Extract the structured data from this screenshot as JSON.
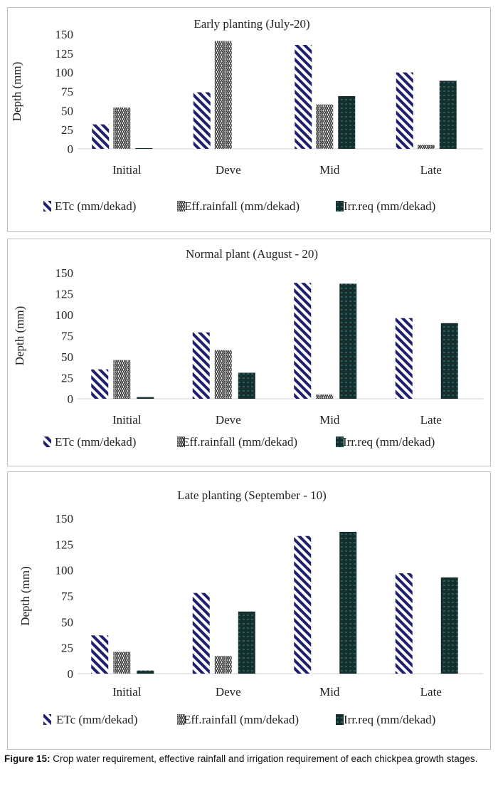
{
  "chart_data": [
    {
      "type": "bar",
      "title": "Early planting (July-20)",
      "ylabel": "Depth (mm)",
      "xlabel": "",
      "ylim": [
        0,
        150
      ],
      "yticks": [
        0,
        25,
        50,
        75,
        100,
        125,
        150
      ],
      "categories": [
        "Initial",
        "Deve",
        "Mid",
        "Late"
      ],
      "series": [
        {
          "name": "ETc (mm/dekad)",
          "values": [
            32,
            74,
            136,
            100
          ]
        },
        {
          "name": "Eff.rainfall (mm/dekad)",
          "values": [
            54,
            141,
            58,
            5
          ]
        },
        {
          "name": "Irr.req (mm/dekad)",
          "values": [
            1,
            0,
            69,
            89
          ]
        }
      ]
    },
    {
      "type": "bar",
      "title": "Normal plant (August - 20)",
      "ylabel": "Depth (mm)",
      "xlabel": "",
      "ylim": [
        0,
        150
      ],
      "yticks": [
        0,
        25,
        50,
        75,
        100,
        125,
        150
      ],
      "categories": [
        "Initial",
        "Deve",
        "Mid",
        "Late"
      ],
      "series": [
        {
          "name": "ETc (mm/dekad)",
          "values": [
            35,
            79,
            138,
            96
          ]
        },
        {
          "name": "Eff.rainfall (mm/dekad)",
          "values": [
            46,
            58,
            5,
            0
          ]
        },
        {
          "name": "Irr.req (mm/dekad)",
          "values": [
            2,
            31,
            137,
            90
          ]
        }
      ]
    },
    {
      "type": "bar",
      "title": "Late planting (September - 10)",
      "ylabel": "Depth (mm)",
      "xlabel": "",
      "ylim": [
        0,
        150
      ],
      "yticks": [
        0,
        25,
        50,
        75,
        100,
        125,
        150
      ],
      "categories": [
        "Initial",
        "Deve",
        "Mid",
        "Late"
      ],
      "series": [
        {
          "name": "ETc (mm/dekad)",
          "values": [
            37,
            78,
            133,
            97
          ]
        },
        {
          "name": "Eff.rainfall (mm/dekad)",
          "values": [
            21,
            17,
            0,
            0
          ]
        },
        {
          "name": "Irr.req (mm/dekad)",
          "values": [
            3,
            60,
            137,
            93
          ]
        }
      ]
    }
  ],
  "colors": {
    "etc_stripe": "#1f1f6e",
    "rain_fg": "#3a3a3a",
    "irr_bg": "#152e2e",
    "irr_line": "#3f8f8f"
  },
  "caption": {
    "label": "Figure 15:",
    "text": " Crop water requirement, effective rainfall and irrigation requirement of each chickpea growth stages."
  }
}
